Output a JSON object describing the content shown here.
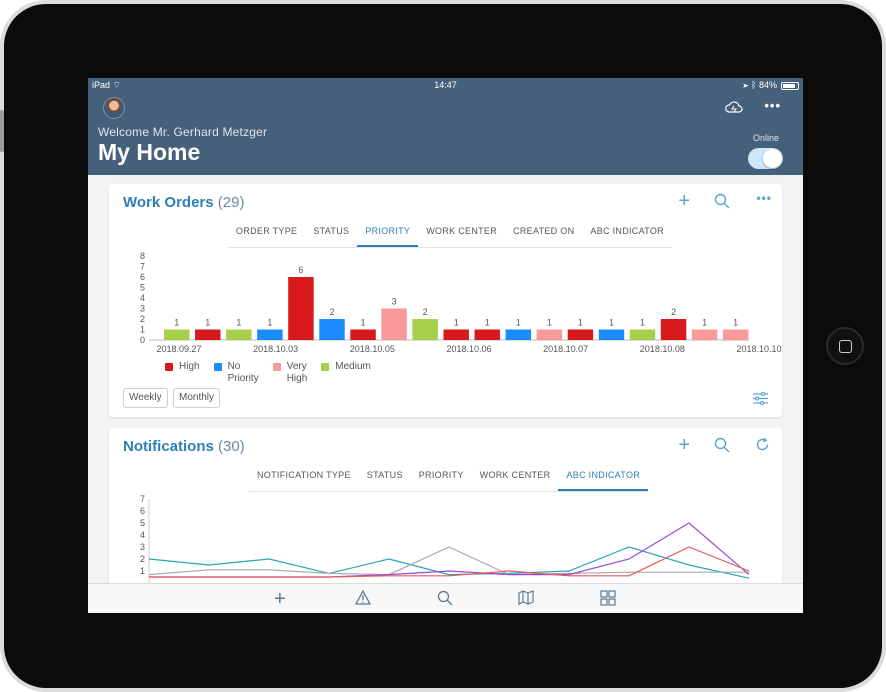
{
  "status_bar": {
    "carrier": "iPad",
    "time": "14:47",
    "battery": "84%"
  },
  "header": {
    "welcome": "Welcome Mr. Gerhard Metzger",
    "title": "My Home",
    "online_label": "Online"
  },
  "work_orders": {
    "title": "Work Orders",
    "count": "(29)",
    "tabs": [
      "ORDER TYPE",
      "STATUS",
      "PRIORITY",
      "WORK CENTER",
      "CREATED ON",
      "ABC INDICATOR"
    ],
    "active_tab": "PRIORITY",
    "legend": [
      "High",
      "No\nPriority",
      "Very\nHigh",
      "Medium"
    ],
    "buttons": {
      "weekly": "Weekly",
      "monthly": "Monthly"
    }
  },
  "notifications": {
    "title": "Notifications",
    "count": "(30)",
    "tabs": [
      "NOTIFICATION TYPE",
      "STATUS",
      "PRIORITY",
      "WORK CENTER",
      "ABC INDICATOR"
    ],
    "active_tab": "ABC INDICATOR"
  },
  "colors": {
    "header_bg": "#45607a",
    "accent": "#2e7fb8",
    "high": "#d7191c",
    "no_priority": "#1a8cff",
    "very_high": "#f89a9a",
    "medium": "#a6d04a"
  },
  "chart_data": [
    {
      "type": "bar",
      "ylim": [
        0,
        8
      ],
      "yticks": [
        0,
        1,
        2,
        3,
        4,
        5,
        6,
        7,
        8
      ],
      "x_tick_labels": [
        "2018.09.27",
        "2018.10.03",
        "2018.10.05",
        "2018.10.06",
        "2018.10.07",
        "2018.10.08",
        "2018.10.10"
      ],
      "bars": [
        {
          "series": "Medium",
          "value": 1
        },
        {
          "series": "High",
          "value": 1
        },
        {
          "series": "Medium",
          "value": 1
        },
        {
          "series": "No Priority",
          "value": 1
        },
        {
          "series": "High",
          "value": 6
        },
        {
          "series": "No Priority",
          "value": 2
        },
        {
          "series": "High",
          "value": 1
        },
        {
          "series": "Very High",
          "value": 3
        },
        {
          "series": "Medium",
          "value": 2
        },
        {
          "series": "High",
          "value": 1
        },
        {
          "series": "High",
          "value": 1
        },
        {
          "series": "No Priority",
          "value": 1
        },
        {
          "series": "Very High",
          "value": 1
        },
        {
          "series": "High",
          "value": 1
        },
        {
          "series": "No Priority",
          "value": 1
        },
        {
          "series": "Medium",
          "value": 1
        },
        {
          "series": "High",
          "value": 2
        },
        {
          "series": "Very High",
          "value": 1
        },
        {
          "series": "Very High",
          "value": 1
        }
      ],
      "legend": [
        "High",
        "No Priority",
        "Very High",
        "Medium"
      ]
    },
    {
      "type": "line",
      "ylim": [
        0,
        7
      ],
      "yticks": [
        1,
        2,
        3,
        4,
        5,
        6,
        7
      ],
      "x": [
        0,
        1,
        2,
        3,
        4,
        5,
        6,
        7,
        8,
        9,
        10
      ],
      "series": [
        {
          "color": "#2aa5b8",
          "values": [
            2,
            1.5,
            2,
            0.8,
            2,
            0.7,
            0.8,
            1,
            3,
            1.5,
            0.4
          ]
        },
        {
          "color": "#aaaaaa",
          "values": [
            0.7,
            1.1,
            1.1,
            0.8,
            0.7,
            3,
            0.7,
            0.8,
            0.9,
            0.9,
            0.9
          ]
        },
        {
          "color": "#9b4ad9",
          "values": [
            0.5,
            0.5,
            0.5,
            0.5,
            0.7,
            1,
            0.7,
            0.7,
            2,
            5,
            0.7
          ]
        },
        {
          "color": "#e65a5a",
          "values": [
            0.5,
            0.5,
            0.5,
            0.5,
            0.6,
            0.6,
            1,
            0.6,
            0.6,
            3,
            1
          ]
        }
      ]
    }
  ]
}
